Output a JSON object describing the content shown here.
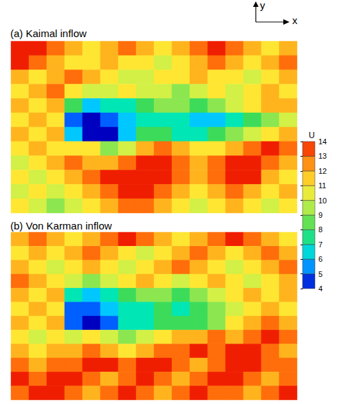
{
  "chart_data": [
    {
      "type": "heatmap",
      "title": "(a) Kaimal inflow",
      "tick_labels": false,
      "cells": [
        [
          14,
          14,
          13,
          12,
          11,
          12,
          13,
          12,
          11,
          12,
          13,
          14,
          13,
          12,
          11,
          12
        ],
        [
          14,
          13,
          12,
          11,
          11,
          12,
          11,
          11,
          10,
          11,
          12,
          13,
          12,
          11,
          12,
          13
        ],
        [
          12,
          11,
          12,
          13,
          12,
          11,
          10,
          10,
          11,
          11,
          12,
          11,
          11,
          10,
          11,
          12
        ],
        [
          11,
          12,
          13,
          11,
          10,
          10,
          11,
          10,
          10,
          9,
          10,
          11,
          10,
          11,
          12,
          11
        ],
        [
          12,
          11,
          12,
          8,
          6,
          7,
          7,
          8,
          9,
          9,
          8,
          9,
          10,
          11,
          12,
          12
        ],
        [
          11,
          12,
          11,
          5,
          4,
          5,
          6,
          7,
          7,
          7,
          6,
          6,
          7,
          8,
          9,
          10
        ],
        [
          12,
          11,
          12,
          6,
          4,
          4,
          6,
          8,
          8,
          7,
          7,
          8,
          9,
          10,
          11,
          12
        ],
        [
          11,
          12,
          11,
          11,
          11,
          9,
          10,
          12,
          13,
          12,
          11,
          11,
          12,
          13,
          14,
          13
        ],
        [
          10,
          11,
          12,
          13,
          12,
          12,
          13,
          14,
          14,
          13,
          12,
          13,
          14,
          14,
          13,
          12
        ],
        [
          11,
          10,
          11,
          12,
          13,
          14,
          14,
          14,
          14,
          13,
          12,
          13,
          14,
          14,
          12,
          11
        ],
        [
          10,
          11,
          10,
          11,
          12,
          13,
          14,
          14,
          13,
          12,
          11,
          12,
          13,
          12,
          11,
          12
        ],
        [
          11,
          10,
          9,
          10,
          11,
          12,
          13,
          13,
          12,
          11,
          10,
          11,
          12,
          11,
          10,
          11
        ]
      ]
    },
    {
      "type": "heatmap",
      "title": "(b) Von Karman inflow",
      "tick_labels": false,
      "cells": [
        [
          12,
          13,
          12,
          11,
          12,
          13,
          14,
          13,
          12,
          11,
          12,
          13,
          14,
          13,
          12,
          11
        ],
        [
          11,
          12,
          11,
          12,
          13,
          12,
          11,
          10,
          11,
          12,
          13,
          12,
          11,
          12,
          13,
          12
        ],
        [
          12,
          11,
          10,
          11,
          12,
          11,
          10,
          11,
          12,
          13,
          12,
          11,
          10,
          11,
          12,
          13
        ],
        [
          13,
          12,
          11,
          10,
          9,
          10,
          11,
          12,
          11,
          10,
          11,
          12,
          11,
          10,
          11,
          12
        ],
        [
          12,
          11,
          12,
          7,
          6,
          7,
          8,
          9,
          9,
          8,
          9,
          10,
          11,
          12,
          11,
          12
        ],
        [
          11,
          12,
          11,
          5,
          5,
          6,
          7,
          7,
          8,
          7,
          8,
          9,
          10,
          11,
          12,
          11
        ],
        [
          12,
          11,
          12,
          5,
          4,
          5,
          7,
          7,
          8,
          8,
          8,
          9,
          11,
          12,
          13,
          12
        ],
        [
          11,
          10,
          11,
          10,
          11,
          10,
          9,
          10,
          11,
          12,
          12,
          13,
          12,
          13,
          14,
          13
        ],
        [
          12,
          11,
          12,
          12,
          13,
          12,
          11,
          12,
          13,
          13,
          14,
          13,
          14,
          14,
          13,
          12
        ],
        [
          13,
          12,
          13,
          13,
          14,
          14,
          13,
          14,
          14,
          13,
          12,
          13,
          14,
          14,
          13,
          13
        ],
        [
          14,
          13,
          14,
          14,
          13,
          12,
          13,
          14,
          13,
          12,
          13,
          14,
          14,
          13,
          12,
          13
        ],
        [
          13,
          14,
          14,
          13,
          12,
          13,
          14,
          13,
          12,
          13,
          14,
          13,
          13,
          12,
          13,
          14
        ]
      ]
    }
  ],
  "colorbar": {
    "title": "U",
    "range": [
      4,
      14
    ],
    "ticks": [
      4,
      5,
      6,
      7,
      8,
      9,
      10,
      11,
      12,
      13,
      14
    ]
  },
  "axis_arrows": {
    "x": "x",
    "y": "y"
  }
}
